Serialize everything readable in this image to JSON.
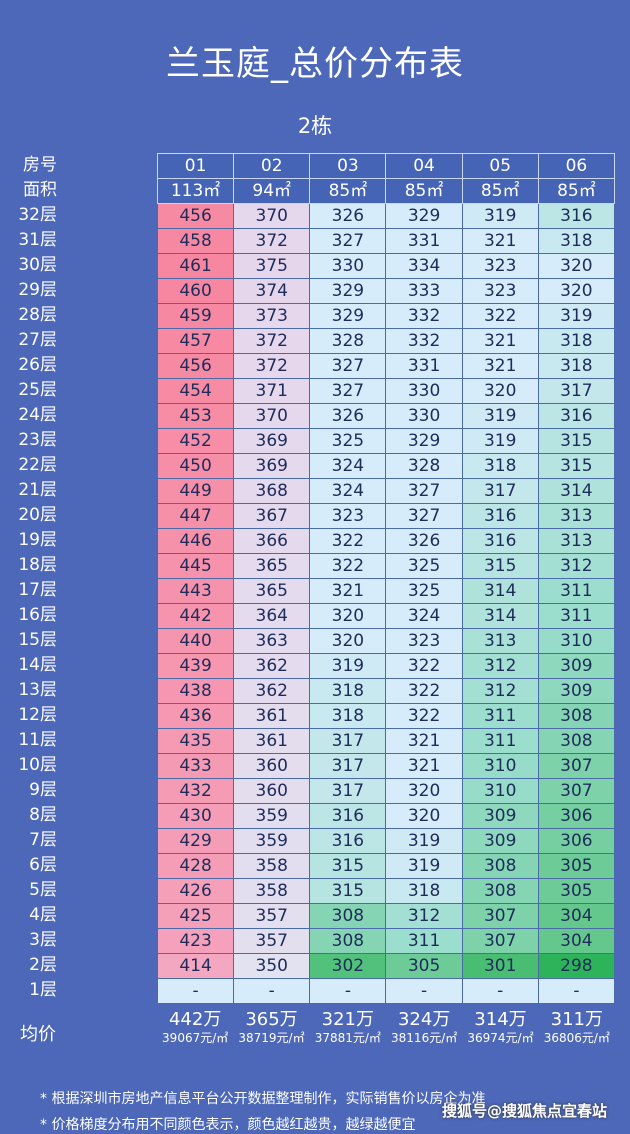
{
  "title": "兰玉庭_总价分布表",
  "subtitle": "2栋",
  "header_labels": {
    "room": "房号",
    "area": "面积",
    "avg": "均价"
  },
  "chart_data": {
    "type": "table",
    "title": "兰玉庭_总价分布表",
    "columns": [
      "01",
      "02",
      "03",
      "04",
      "05",
      "06"
    ],
    "areas": [
      "113㎡",
      "94㎡",
      "85㎡",
      "85㎡",
      "85㎡",
      "85㎡"
    ],
    "rows": [
      {
        "floor": "32层",
        "values": [
          456,
          370,
          326,
          329,
          319,
          316
        ]
      },
      {
        "floor": "31层",
        "values": [
          458,
          372,
          327,
          331,
          321,
          318
        ]
      },
      {
        "floor": "30层",
        "values": [
          461,
          375,
          330,
          334,
          323,
          320
        ]
      },
      {
        "floor": "29层",
        "values": [
          460,
          374,
          329,
          333,
          323,
          320
        ]
      },
      {
        "floor": "28层",
        "values": [
          459,
          373,
          329,
          332,
          322,
          319
        ]
      },
      {
        "floor": "27层",
        "values": [
          457,
          372,
          328,
          332,
          321,
          318
        ]
      },
      {
        "floor": "26层",
        "values": [
          456,
          372,
          327,
          331,
          321,
          318
        ]
      },
      {
        "floor": "25层",
        "values": [
          454,
          371,
          327,
          330,
          320,
          317
        ]
      },
      {
        "floor": "24层",
        "values": [
          453,
          370,
          326,
          330,
          319,
          316
        ]
      },
      {
        "floor": "23层",
        "values": [
          452,
          369,
          325,
          329,
          319,
          315
        ]
      },
      {
        "floor": "22层",
        "values": [
          450,
          369,
          324,
          328,
          318,
          315
        ]
      },
      {
        "floor": "21层",
        "values": [
          449,
          368,
          324,
          327,
          317,
          314
        ]
      },
      {
        "floor": "20层",
        "values": [
          447,
          367,
          323,
          327,
          316,
          313
        ]
      },
      {
        "floor": "19层",
        "values": [
          446,
          366,
          322,
          326,
          316,
          313
        ]
      },
      {
        "floor": "18层",
        "values": [
          445,
          365,
          322,
          325,
          315,
          312
        ]
      },
      {
        "floor": "17层",
        "values": [
          443,
          365,
          321,
          325,
          314,
          311
        ]
      },
      {
        "floor": "16层",
        "values": [
          442,
          364,
          320,
          324,
          314,
          311
        ]
      },
      {
        "floor": "15层",
        "values": [
          440,
          363,
          320,
          323,
          313,
          310
        ]
      },
      {
        "floor": "14层",
        "values": [
          439,
          362,
          319,
          322,
          312,
          309
        ]
      },
      {
        "floor": "13层",
        "values": [
          438,
          362,
          318,
          322,
          312,
          309
        ]
      },
      {
        "floor": "12层",
        "values": [
          436,
          361,
          318,
          322,
          311,
          308
        ]
      },
      {
        "floor": "11层",
        "values": [
          435,
          361,
          317,
          321,
          311,
          308
        ]
      },
      {
        "floor": "10层",
        "values": [
          433,
          360,
          317,
          321,
          310,
          307
        ]
      },
      {
        "floor": "9层",
        "values": [
          432,
          360,
          317,
          320,
          310,
          307
        ]
      },
      {
        "floor": "8层",
        "values": [
          430,
          359,
          316,
          320,
          309,
          306
        ]
      },
      {
        "floor": "7层",
        "values": [
          429,
          359,
          316,
          319,
          309,
          306
        ]
      },
      {
        "floor": "6层",
        "values": [
          428,
          358,
          315,
          319,
          308,
          305
        ]
      },
      {
        "floor": "5层",
        "values": [
          426,
          358,
          315,
          318,
          308,
          305
        ]
      },
      {
        "floor": "4层",
        "values": [
          425,
          357,
          308,
          312,
          307,
          304
        ]
      },
      {
        "floor": "3层",
        "values": [
          423,
          357,
          308,
          311,
          307,
          304
        ]
      },
      {
        "floor": "2层",
        "values": [
          414,
          350,
          302,
          305,
          301,
          298
        ]
      },
      {
        "floor": "1层",
        "values": [
          "-",
          "-",
          "-",
          "-",
          "-",
          "-"
        ]
      }
    ],
    "averages": [
      {
        "total": "442万",
        "unit_price": "39067元/㎡"
      },
      {
        "total": "365万",
        "unit_price": "38719元/㎡"
      },
      {
        "total": "321万",
        "unit_price": "37881元/㎡"
      },
      {
        "total": "324万",
        "unit_price": "38116元/㎡"
      },
      {
        "total": "314万",
        "unit_price": "36974元/㎡"
      },
      {
        "total": "311万",
        "unit_price": "36806元/㎡"
      }
    ],
    "color_scale": {
      "high": "#f7879f",
      "mid": "#d8ecfa",
      "low": "#2fb35a"
    }
  },
  "notes": [
    "* 根据深圳市房地产信息平台公开数据整理制作，实际销售价以房企为准",
    "* 价格梯度分布用不同颜色表示，颜色越红越贵，越绿越便宜"
  ],
  "watermark": "搜狐号@搜狐焦点宜春站"
}
